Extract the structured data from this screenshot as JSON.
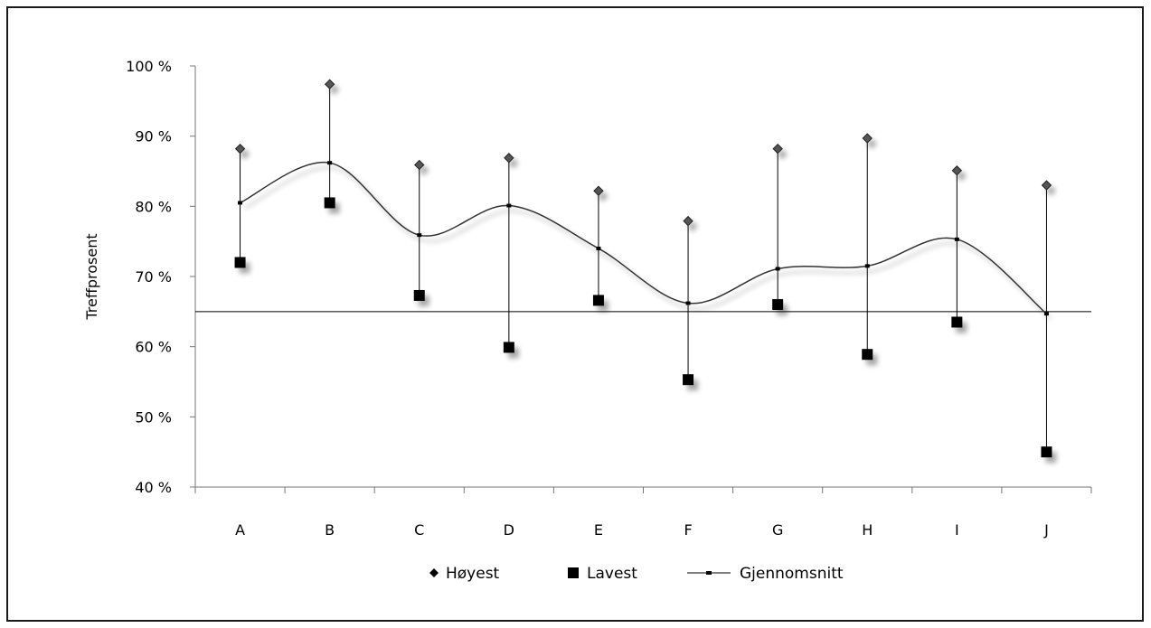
{
  "chart_data": {
    "type": "line",
    "title": "",
    "xlabel": "",
    "ylabel": "Treffprosent",
    "categories": [
      "A",
      "B",
      "C",
      "D",
      "E",
      "F",
      "G",
      "H",
      "I",
      "J"
    ],
    "ylim": [
      40,
      100
    ],
    "yticks": [
      40,
      50,
      60,
      70,
      80,
      90,
      100
    ],
    "ytick_labels": [
      "40 %",
      "50 %",
      "60 %",
      "70 %",
      "80 %",
      "90 %",
      "100 %"
    ],
    "reference_line": 65,
    "grid": false,
    "legend_position": "bottom",
    "series": [
      {
        "name": "Høyest",
        "marker": "diamond",
        "values": [
          88.2,
          97.4,
          85.9,
          86.9,
          82.2,
          77.9,
          88.2,
          89.7,
          85.1,
          83.0
        ]
      },
      {
        "name": "Lavest",
        "marker": "square",
        "values": [
          72.0,
          80.5,
          67.3,
          59.9,
          66.6,
          55.3,
          66.0,
          58.9,
          63.5,
          45.0
        ]
      },
      {
        "name": "Gjennomsnitt",
        "marker": "line",
        "values": [
          80.5,
          86.2,
          75.9,
          80.1,
          74.0,
          66.2,
          71.1,
          71.5,
          75.3,
          64.7
        ]
      }
    ],
    "colors": {
      "marker": "#000000",
      "diamond": "#555555",
      "line": "#333333",
      "axis": "#777777"
    }
  }
}
